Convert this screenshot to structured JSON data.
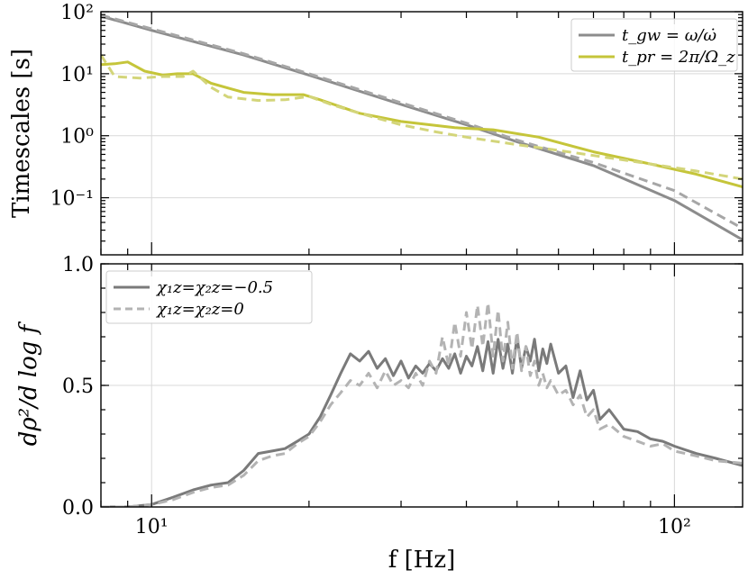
{
  "colors": {
    "gw": "#8c8c8c",
    "gw_dashed": "#a6a6a6",
    "pr": "#c5c53a",
    "pr_dashed": "#d3d57a",
    "snr": "#7a7a7a",
    "snr_dashed": "#b3b3b3"
  },
  "xaxis": {
    "label": "f [Hz]",
    "scale": "log",
    "xlim": [
      8,
      135
    ],
    "ticks": [
      {
        "value": 10,
        "label": "10¹"
      },
      {
        "value": 100,
        "label": "10²"
      }
    ]
  },
  "chart_data": [
    {
      "type": "line",
      "title": "",
      "ylabel": "Timescales [s]",
      "yscale": "log",
      "ylim": [
        0.012,
        100
      ],
      "yticks": [
        {
          "value": 0.1,
          "label": "10⁻¹"
        },
        {
          "value": 1,
          "label": "10⁰"
        },
        {
          "value": 10,
          "label": "10¹"
        },
        {
          "value": 100,
          "label": "10²"
        }
      ],
      "legend": {
        "position": "top-right",
        "entries": [
          {
            "label": "t_gw = ω/ω̇",
            "series": "t_gw"
          },
          {
            "label": "t_pr = 2π/Ω_z",
            "series": "t_pr"
          }
        ]
      },
      "series": [
        {
          "name": "t_gw",
          "style": "solid",
          "color": "gw",
          "x": [
            8,
            10,
            15,
            20,
            30,
            40,
            50,
            70,
            100,
            135
          ],
          "y": [
            85,
            50,
            20,
            9.5,
            3.2,
            1.5,
            0.8,
            0.33,
            0.09,
            0.021
          ]
        },
        {
          "name": "t_gw (χ=0)",
          "style": "dashed",
          "color": "gw_dashed",
          "x": [
            8,
            10,
            15,
            20,
            30,
            40,
            50,
            70,
            100,
            135
          ],
          "y": [
            88,
            53,
            21,
            10,
            3.4,
            1.6,
            0.85,
            0.37,
            0.13,
            0.032
          ]
        },
        {
          "name": "t_pr",
          "style": "solid",
          "color": "pr",
          "x": [
            8,
            8.5,
            9,
            9.7,
            10.5,
            11.2,
            12,
            13,
            15,
            17,
            18.5,
            19.5,
            21,
            25,
            30,
            38,
            45,
            55,
            70,
            90,
            110,
            135
          ],
          "y": [
            14,
            14.5,
            15.5,
            11,
            9.5,
            10,
            10,
            7,
            5,
            4.6,
            4.6,
            4.6,
            3.8,
            2.3,
            1.7,
            1.35,
            1.25,
            0.95,
            0.55,
            0.35,
            0.24,
            0.15
          ]
        },
        {
          "name": "t_pr (χ=0)",
          "style": "dashed",
          "color": "pr_dashed",
          "x": [
            8,
            8.5,
            9.5,
            10.5,
            11.5,
            12,
            13,
            14,
            16,
            18,
            20,
            22,
            25,
            30,
            35,
            40,
            50,
            60,
            70,
            90,
            110,
            135
          ],
          "y": [
            20,
            9,
            8.5,
            9,
            9,
            11,
            6,
            4.2,
            3.7,
            3.8,
            4.3,
            3.2,
            2.3,
            1.5,
            1.15,
            0.95,
            0.72,
            0.58,
            0.48,
            0.35,
            0.27,
            0.2
          ]
        }
      ]
    },
    {
      "type": "line",
      "title": "",
      "ylabel": "dρ²/d log f",
      "yscale": "linear",
      "ylim": [
        0,
        1.0
      ],
      "yticks": [
        {
          "value": 0.0,
          "label": "0.0"
        },
        {
          "value": 0.5,
          "label": "0.5"
        },
        {
          "value": 1.0,
          "label": "1.0"
        }
      ],
      "legend": {
        "position": "top-left",
        "entries": [
          {
            "label": "χ₁z=χ₂z=−0.5",
            "series": "snr_m05"
          },
          {
            "label": "χ₁z=χ₂z=0",
            "series": "snr_0"
          }
        ]
      },
      "series": [
        {
          "name": "snr_m05",
          "style": "solid",
          "color": "snr",
          "x": [
            8,
            9,
            10,
            11,
            12,
            13,
            14,
            15,
            16,
            17,
            18,
            19,
            20,
            21,
            22,
            23,
            24,
            25,
            26,
            27,
            28,
            29,
            30,
            31,
            32,
            33,
            34,
            35,
            36,
            37,
            38,
            39,
            40,
            41,
            42,
            43,
            44,
            45,
            46,
            47,
            48,
            49,
            50,
            51,
            52,
            53,
            54,
            55,
            56,
            57,
            58,
            60,
            62,
            64,
            66,
            68,
            70,
            72,
            75,
            80,
            85,
            90,
            95,
            100,
            110,
            120,
            135
          ],
          "y": [
            0.0,
            0.0,
            0.01,
            0.04,
            0.07,
            0.09,
            0.1,
            0.15,
            0.22,
            0.23,
            0.24,
            0.27,
            0.3,
            0.37,
            0.46,
            0.55,
            0.63,
            0.6,
            0.64,
            0.57,
            0.61,
            0.54,
            0.6,
            0.53,
            0.58,
            0.55,
            0.59,
            0.56,
            0.61,
            0.57,
            0.63,
            0.55,
            0.62,
            0.58,
            0.66,
            0.56,
            0.68,
            0.55,
            0.69,
            0.57,
            0.67,
            0.55,
            0.7,
            0.57,
            0.66,
            0.6,
            0.69,
            0.56,
            0.65,
            0.59,
            0.67,
            0.55,
            0.58,
            0.45,
            0.56,
            0.44,
            0.48,
            0.36,
            0.4,
            0.32,
            0.31,
            0.28,
            0.27,
            0.25,
            0.22,
            0.2,
            0.17
          ]
        },
        {
          "name": "snr_0",
          "style": "dashed",
          "color": "snr_dashed",
          "x": [
            8,
            9,
            10,
            11,
            12,
            13,
            14,
            15,
            16,
            17,
            18,
            19,
            20,
            21,
            22,
            23,
            24,
            25,
            26,
            27,
            28,
            29,
            30,
            31,
            32,
            33,
            34,
            35,
            36,
            37,
            38,
            39,
            40,
            41,
            42,
            43,
            44,
            45,
            46,
            47,
            48,
            49,
            50,
            51,
            52,
            53,
            54,
            55,
            56,
            57,
            58,
            60,
            62,
            64,
            66,
            68,
            70,
            72,
            75,
            80,
            85,
            90,
            95,
            100,
            110,
            120,
            135
          ],
          "y": [
            0.0,
            0.0,
            0.01,
            0.03,
            0.06,
            0.08,
            0.09,
            0.13,
            0.19,
            0.21,
            0.22,
            0.26,
            0.29,
            0.35,
            0.42,
            0.47,
            0.52,
            0.5,
            0.55,
            0.49,
            0.56,
            0.5,
            0.52,
            0.49,
            0.55,
            0.5,
            0.6,
            0.55,
            0.7,
            0.58,
            0.76,
            0.62,
            0.8,
            0.65,
            0.83,
            0.66,
            0.84,
            0.62,
            0.81,
            0.6,
            0.76,
            0.57,
            0.72,
            0.56,
            0.66,
            0.54,
            0.6,
            0.5,
            0.55,
            0.49,
            0.52,
            0.46,
            0.48,
            0.42,
            0.46,
            0.37,
            0.4,
            0.32,
            0.34,
            0.29,
            0.27,
            0.25,
            0.26,
            0.23,
            0.21,
            0.19,
            0.18
          ]
        }
      ]
    }
  ]
}
